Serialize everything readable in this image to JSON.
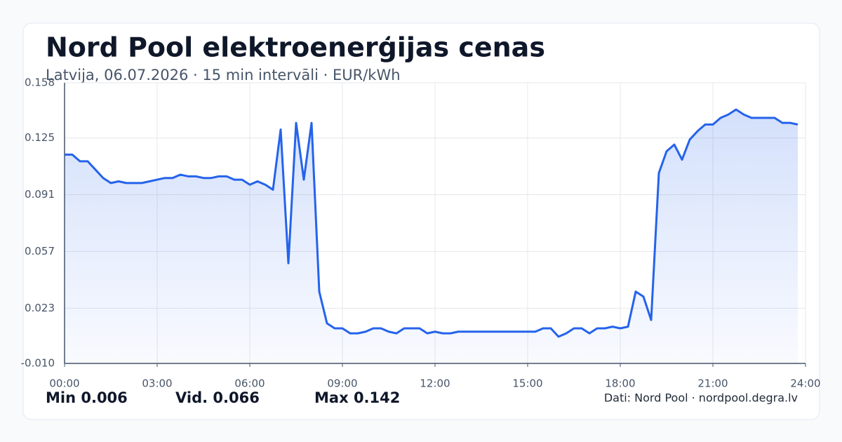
{
  "chart_data": {
    "type": "line",
    "title": "Nord Pool elektroenerģijas cenas",
    "subtitle": "Latvija, 06.07.2026 · 15 min intervāli · EUR/kWh",
    "color": "#2563eb",
    "grid": true,
    "x": [
      0,
      0.25,
      0.5,
      0.75,
      1,
      1.25,
      1.5,
      1.75,
      2,
      2.25,
      2.5,
      2.75,
      3,
      3.25,
      3.5,
      3.75,
      4,
      4.25,
      4.5,
      4.75,
      5,
      5.25,
      5.5,
      5.75,
      6,
      6.25,
      6.5,
      6.75,
      7,
      7.25,
      7.5,
      7.75,
      8,
      8.25,
      8.5,
      8.75,
      9,
      9.25,
      9.5,
      9.75,
      10,
      10.25,
      10.5,
      10.75,
      11,
      11.25,
      11.5,
      11.75,
      12,
      12.25,
      12.5,
      12.75,
      13,
      13.25,
      13.5,
      13.75,
      14,
      14.25,
      14.5,
      14.75,
      15,
      15.25,
      15.5,
      15.75,
      16,
      16.25,
      16.5,
      16.75,
      17,
      17.25,
      17.5,
      17.75,
      18,
      18.25,
      18.5,
      18.75,
      19,
      19.25,
      19.5,
      19.75,
      20,
      20.25,
      20.5,
      20.75,
      21,
      21.25,
      21.5,
      21.75,
      22,
      22.25,
      22.5,
      22.75,
      23,
      23.25,
      23.5,
      23.75
    ],
    "values": [
      0.115,
      0.115,
      0.111,
      0.111,
      0.106,
      0.101,
      0.098,
      0.099,
      0.098,
      0.098,
      0.098,
      0.099,
      0.1,
      0.101,
      0.101,
      0.103,
      0.102,
      0.102,
      0.101,
      0.101,
      0.102,
      0.102,
      0.1,
      0.1,
      0.097,
      0.099,
      0.097,
      0.094,
      0.13,
      0.05,
      0.134,
      0.1,
      0.134,
      0.033,
      0.014,
      0.011,
      0.011,
      0.008,
      0.008,
      0.009,
      0.011,
      0.011,
      0.009,
      0.008,
      0.011,
      0.011,
      0.011,
      0.008,
      0.009,
      0.008,
      0.008,
      0.009,
      0.009,
      0.009,
      0.009,
      0.009,
      0.009,
      0.009,
      0.009,
      0.009,
      0.009,
      0.009,
      0.011,
      0.011,
      0.006,
      0.008,
      0.011,
      0.011,
      0.008,
      0.011,
      0.011,
      0.012,
      0.011,
      0.012,
      0.033,
      0.03,
      0.016,
      0.104,
      0.117,
      0.121,
      0.112,
      0.124,
      0.129,
      0.133,
      0.133,
      0.137,
      0.139,
      0.142,
      0.139,
      0.137,
      0.137,
      0.137,
      0.137,
      0.134,
      0.134,
      0.133
    ],
    "xlim": [
      0,
      24
    ],
    "xticks": [
      {
        "value": 0,
        "label": "00:00"
      },
      {
        "value": 3,
        "label": "03:00"
      },
      {
        "value": 6,
        "label": "06:00"
      },
      {
        "value": 9,
        "label": "09:00"
      },
      {
        "value": 12,
        "label": "12:00"
      },
      {
        "value": 15,
        "label": "15:00"
      },
      {
        "value": 18,
        "label": "18:00"
      },
      {
        "value": 21,
        "label": "21:00"
      },
      {
        "value": 24,
        "label": "24:00"
      }
    ],
    "ylim": [
      -0.01,
      0.158
    ],
    "yticks": [
      {
        "value": -0.01,
        "label": "-0.010"
      },
      0.023,
      0.057,
      0.091,
      0.125,
      0.158
    ],
    "stats": [
      {
        "label": "Min",
        "value": 0.006
      },
      {
        "label": "Vid.",
        "value": 0.066
      },
      {
        "label": "Max",
        "value": 0.142
      }
    ],
    "source": "Dati: Nord Pool · nordpool.degra.lv"
  }
}
